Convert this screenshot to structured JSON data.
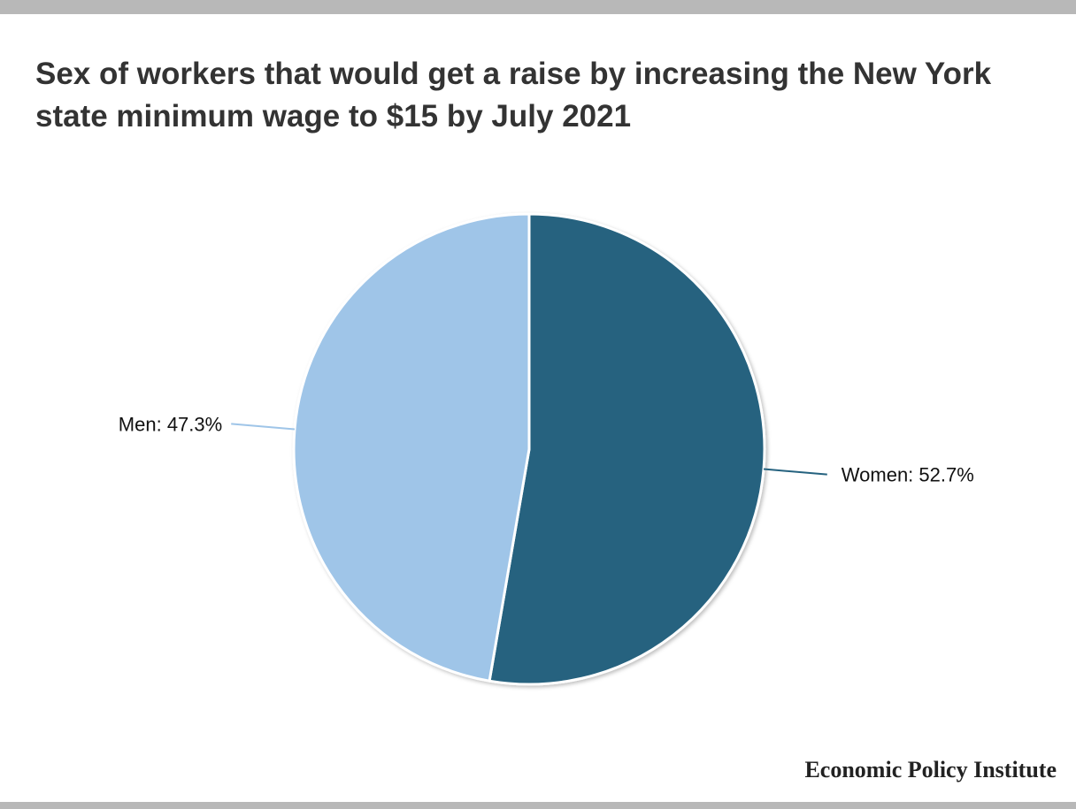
{
  "title": "Sex of workers that would get a raise by increasing the New York state minimum wage to $15 by July 2021",
  "source": "Economic Policy Institute",
  "colors": {
    "women": "#25627f",
    "men": "#9fc5e8",
    "title": "#333333",
    "border_bars": "#b8b8b8"
  },
  "chart_data": {
    "type": "pie",
    "title": "Sex of workers that would get a raise by increasing the New York state minimum wage to $15 by July 2021",
    "slices": [
      {
        "label": "Women",
        "value": 52.7,
        "display": "Women: 52.7%",
        "color": "#25627f"
      },
      {
        "label": "Men",
        "value": 47.3,
        "display": "Men: 47.3%",
        "color": "#9fc5e8"
      }
    ],
    "start": "top, clockwise",
    "legend": "none (direct labels)"
  }
}
